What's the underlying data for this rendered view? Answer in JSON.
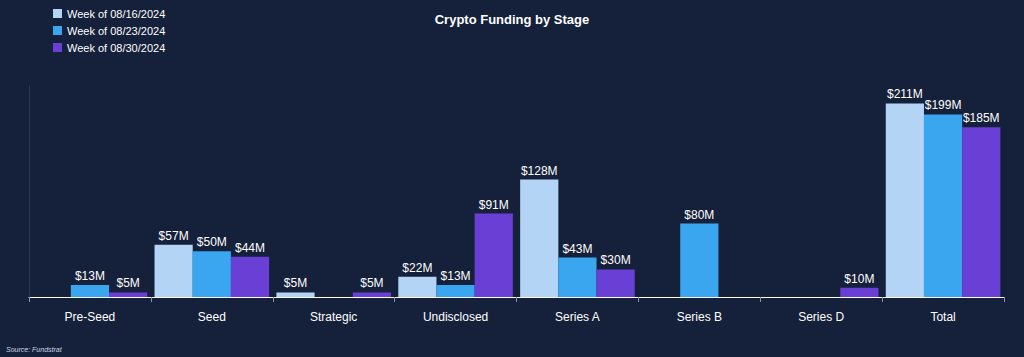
{
  "chart_data": {
    "type": "bar",
    "title": "Crypto Funding by Stage",
    "source": "Source: Fundstrat",
    "categories": [
      "Pre-Seed",
      "Seed",
      "Strategic",
      "Undisclosed",
      "Series A",
      "Series B",
      "Series D",
      "Total"
    ],
    "series": [
      {
        "name": "Week of 08/16/2024",
        "color": "#b3d4f5",
        "values": [
          null,
          57,
          5,
          22,
          128,
          null,
          null,
          211
        ],
        "value_labels": [
          null,
          "$57M",
          "$5M",
          "$22M",
          "$128M",
          null,
          null,
          "$211M"
        ]
      },
      {
        "name": "Week of 08/23/2024",
        "color": "#3aa6f0",
        "values": [
          13,
          50,
          null,
          13,
          43,
          80,
          null,
          199
        ],
        "value_labels": [
          "$13M",
          "$50M",
          null,
          "$13M",
          "$43M",
          "$80M",
          null,
          "$199M"
        ]
      },
      {
        "name": "Week of 08/30/2024",
        "color": "#6a3fd6",
        "values": [
          5,
          44,
          5,
          91,
          30,
          null,
          10,
          185
        ],
        "value_labels": [
          "$5M",
          "$44M",
          "$5M",
          "$91M",
          "$30M",
          null,
          "$10M",
          "$185M"
        ]
      }
    ],
    "ylim": [
      0,
      230
    ],
    "grid": false,
    "legend": "top-left",
    "data_labels": true,
    "tick_labels": "x"
  }
}
